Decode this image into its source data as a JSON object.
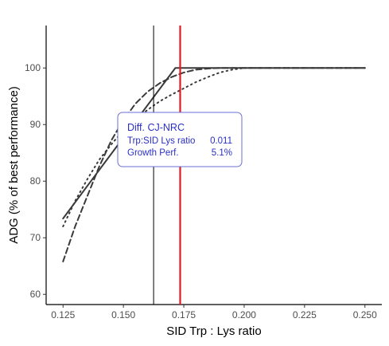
{
  "chart_data": {
    "type": "line",
    "title": "",
    "xlabel": "SID Trp : Lys ratio",
    "ylabel": "ADG (% of best performance)",
    "xlim": [
      0.118,
      0.257
    ],
    "ylim": [
      58.2,
      107.5
    ],
    "x_ticks": [
      0.125,
      0.15,
      0.175,
      0.2,
      0.225,
      0.25
    ],
    "x_tick_labels": [
      "0.125",
      "0.150",
      "0.175",
      "0.200",
      "0.225",
      "0.250"
    ],
    "y_ticks": [
      60,
      70,
      80,
      90,
      100
    ],
    "y_tick_labels": [
      "60",
      "70",
      "80",
      "90",
      "100"
    ],
    "grid": false,
    "series": [
      {
        "style": "solid",
        "x": [
          0.125,
          0.1715,
          0.25
        ],
        "y": [
          73.4,
          100,
          100
        ]
      },
      {
        "style": "dashed",
        "x": [
          0.125,
          0.13,
          0.135,
          0.14,
          0.145,
          0.15,
          0.155,
          0.16,
          0.165,
          0.17,
          0.175,
          0.18,
          0.185,
          0.19,
          0.195,
          0.2,
          0.25
        ],
        "y": [
          65.8,
          72.0,
          77.3,
          82.6,
          87.2,
          90.8,
          93.7,
          95.8,
          97.3,
          98.4,
          99.2,
          99.7,
          99.9,
          100,
          100,
          100,
          100
        ]
      },
      {
        "style": "dotted",
        "x": [
          0.125,
          0.13,
          0.135,
          0.14,
          0.145,
          0.15,
          0.155,
          0.16,
          0.165,
          0.17,
          0.175,
          0.18,
          0.185,
          0.19,
          0.195,
          0.2,
          0.205,
          0.21,
          0.25
        ],
        "y": [
          72.0,
          76.5,
          80.3,
          83.8,
          86.5,
          89.0,
          90.9,
          92.6,
          94.1,
          95.3,
          96.4,
          97.5,
          98.4,
          99.2,
          99.7,
          100,
          100,
          100,
          100
        ]
      }
    ],
    "vlines": [
      {
        "x": 0.1625,
        "color": "#000000",
        "width": 1
      },
      {
        "x": 0.1735,
        "color": "#e01b24",
        "width": 2.2
      }
    ],
    "annotation": {
      "title": "Diff. CJ-NRC",
      "rows": [
        {
          "label": "Trp:SID Lys ratio",
          "value": "0.011"
        },
        {
          "label": "Growth Perf.",
          "value": "5.1%"
        }
      ],
      "text_color": "#2a2fc4",
      "border_color": "#6b6fd6"
    }
  }
}
